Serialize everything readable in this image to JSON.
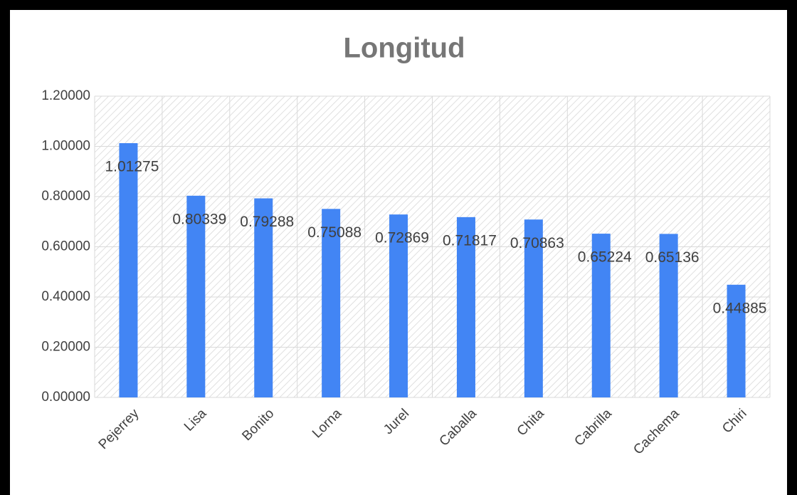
{
  "chart_data": {
    "type": "bar",
    "title": "Longitud",
    "categories": [
      "Pejerrey",
      "Lisa",
      "Bonito",
      "Lorna",
      "Jurel",
      "Caballa",
      "Chita",
      "Cabrilla",
      "Cachema",
      "Chiri"
    ],
    "values": [
      1.01275,
      0.80339,
      0.79288,
      0.75088,
      0.72869,
      0.71817,
      0.70863,
      0.65224,
      0.65136,
      0.44885
    ],
    "color": "#4285f4",
    "ylim": [
      0,
      1.2
    ],
    "yticks": [
      {
        "value": 0,
        "label": "0.00000"
      },
      {
        "value": 0.2,
        "label": "0.20000"
      },
      {
        "value": 0.4,
        "label": "0.40000"
      },
      {
        "value": 0.6,
        "label": "0.60000"
      },
      {
        "value": 0.8,
        "label": "0.80000"
      },
      {
        "value": 1.0,
        "label": "1.00000"
      },
      {
        "value": 1.2,
        "label": "1.20000"
      }
    ],
    "grid": true
  }
}
